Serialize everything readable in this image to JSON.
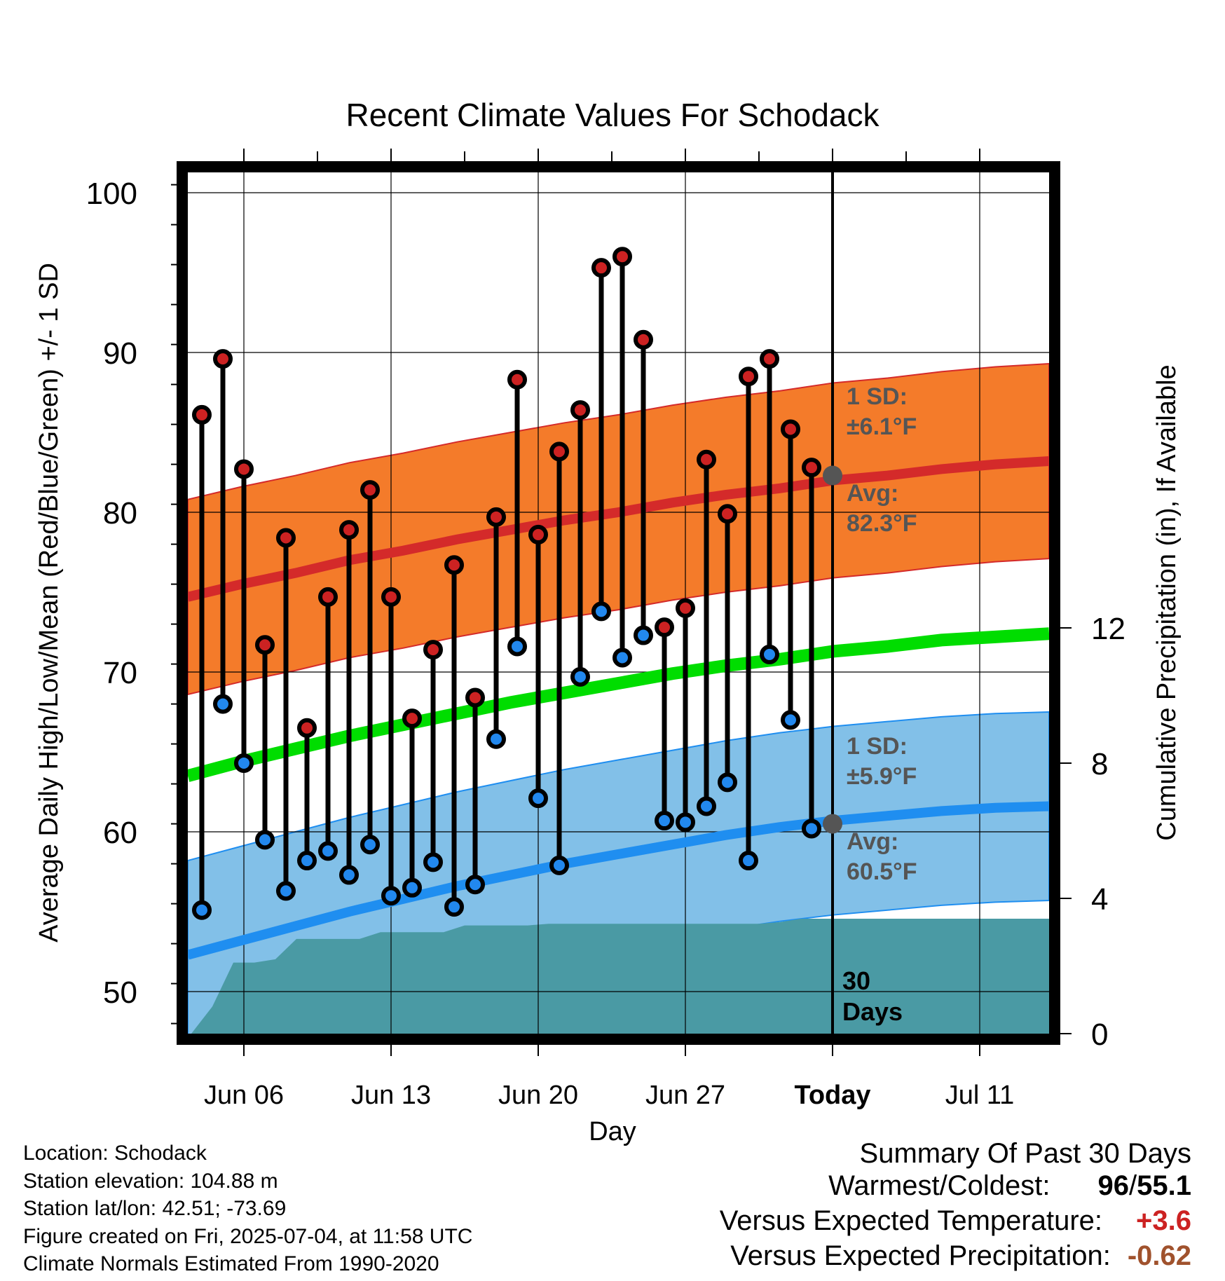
{
  "chart_data": {
    "type": "bar",
    "title": "Recent Climate Values For Schodack",
    "xlabel": "Day",
    "ylabel": "Average Daily High/Low/Mean (Red/Blue/Green) +/- 1 SD",
    "y2label": "Cumulative Precipitation (in), If Available",
    "x_ticks": [
      "Jun 06",
      "Jun 13",
      "Jun 20",
      "Jun 27",
      "Today",
      "Jul 11"
    ],
    "ylim": [
      47.0,
      102.0
    ],
    "y_ticks": [
      50,
      60,
      70,
      80,
      90,
      100
    ],
    "y2_ticks": [
      0,
      4,
      8,
      12
    ],
    "today_label": "Today",
    "period_label_1": "30",
    "period_label_2": "Days",
    "high_sd_label": "1 SD:",
    "high_sd_value": "±6.1°F",
    "high_avg_label": "Avg:",
    "high_avg_value": "82.3°F",
    "low_sd_label": "1 SD:",
    "low_sd_value": "±5.9°F",
    "low_avg_label": "Avg:",
    "low_avg_value": "60.5°F",
    "grid": true,
    "days_since_start": [
      0,
      1,
      2,
      3,
      4,
      5,
      6,
      7,
      8,
      9,
      10,
      11,
      12,
      13,
      14,
      15,
      16,
      17,
      18,
      19,
      20,
      21,
      22,
      23,
      24,
      25,
      26,
      27,
      28,
      29
    ],
    "daily_high": [
      86.1,
      89.6,
      82.7,
      71.7,
      78.4,
      66.5,
      74.7,
      78.9,
      81.4,
      74.7,
      67.1,
      71.4,
      76.7,
      68.4,
      79.7,
      88.3,
      78.6,
      83.8,
      86.4,
      95.3,
      96.0,
      90.8,
      72.8,
      74.0,
      83.3,
      79.9,
      88.5,
      89.6,
      85.2,
      82.8
    ],
    "daily_low": [
      55.1,
      68.0,
      64.3,
      59.5,
      56.3,
      58.2,
      58.8,
      57.3,
      59.2,
      56.0,
      56.5,
      58.1,
      55.3,
      56.7,
      65.8,
      71.6,
      62.1,
      57.9,
      69.7,
      73.8,
      70.9,
      72.3,
      60.7,
      60.6,
      61.6,
      63.1,
      58.2,
      71.1,
      67.0,
      60.2
    ],
    "normal_high": [
      74.7,
      75.5,
      76.2,
      77.0,
      77.6,
      78.3,
      78.9,
      79.5,
      80.0,
      80.6,
      81.1,
      81.5,
      82.0,
      82.3,
      82.7,
      83.0,
      83.2
    ],
    "normal_low": [
      52.3,
      53.2,
      54.1,
      55.0,
      55.8,
      56.6,
      57.3,
      58.0,
      58.6,
      59.2,
      59.8,
      60.3,
      60.7,
      61.0,
      61.3,
      61.5,
      61.6
    ],
    "normal_mean": [
      63.5,
      64.4,
      65.2,
      66.0,
      66.7,
      67.4,
      68.1,
      68.7,
      69.3,
      69.9,
      70.4,
      70.8,
      71.3,
      71.6,
      72.0,
      72.2,
      72.4
    ],
    "sd_high": 6.1,
    "sd_low": 5.9,
    "precip_cumulative": [
      0,
      0,
      0.8,
      2.1,
      2.1,
      2.2,
      2.8,
      2.8,
      2.8,
      2.8,
      3.0,
      3.0,
      3.0,
      3.0,
      3.2,
      3.2,
      3.2,
      3.2,
      3.25,
      3.25,
      3.25,
      3.25,
      3.25,
      3.25,
      3.25,
      3.25,
      3.25,
      3.25,
      3.25,
      3.3,
      3.4,
      3.4,
      3.4,
      3.4,
      3.4,
      3.4,
      3.4,
      3.4,
      3.4,
      3.4,
      3.4
    ],
    "colors": {
      "high_dot": "#cc2222",
      "low_dot": "#2288ee",
      "high_band": "#f47b2a",
      "high_line": "#d42a2a",
      "low_band": "#82c0e8",
      "low_line": "#1f8ef0",
      "mean_line": "#00dd00",
      "precip": "#4a9aa4"
    }
  },
  "footer": {
    "location": "Location: Schodack",
    "elevation": "Station elevation: 104.88 m",
    "latlon": "Station lat/lon: 42.51; -73.69",
    "created": "Figure created on Fri, 2025-07-04, at 11:58 UTC",
    "normals": "Climate Normals Estimated From 1990-2020"
  },
  "summary": {
    "title": "Summary Of Past 30 Days",
    "warm_cold_label": "Warmest/Coldest:",
    "warmest": "96",
    "slash": "/",
    "coldest": "55.1",
    "temp_label": "Versus Expected Temperature:",
    "temp_value": "+3.6",
    "temp_color": "#cc2222",
    "precip_label": "Versus Expected Precipitation:",
    "precip_value": "-0.62",
    "precip_color": "#a0522d"
  }
}
